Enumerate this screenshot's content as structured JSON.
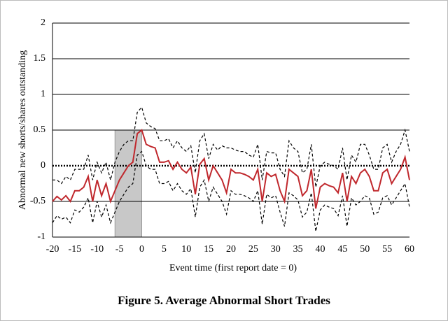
{
  "chart_data": {
    "type": "line",
    "title": "Figure 5. Average Abnormal Short Trades",
    "x_label": "Event time (first report date = 0)",
    "y_label": "Abnormal new shorts/shares outstanding",
    "x": [
      -20,
      -19,
      -18,
      -17,
      -16,
      -15,
      -14,
      -13,
      -12,
      -11,
      -10,
      -9,
      -8,
      -7,
      -6,
      -5,
      -4,
      -3,
      -2,
      -1,
      0,
      1,
      2,
      3,
      4,
      5,
      6,
      7,
      8,
      9,
      10,
      11,
      12,
      13,
      14,
      15,
      16,
      17,
      18,
      19,
      20,
      21,
      22,
      23,
      24,
      25,
      26,
      27,
      28,
      29,
      30,
      31,
      32,
      33,
      34,
      35,
      36,
      37,
      38,
      39,
      40,
      41,
      42,
      43,
      44,
      45,
      46,
      47,
      48,
      49,
      50,
      51,
      52,
      53,
      54,
      55,
      56,
      57,
      58,
      59,
      60
    ],
    "series": [
      {
        "color": "#000000",
        "dashed": true,
        "values": [
          -0.2,
          -0.2,
          -0.25,
          -0.15,
          -0.2,
          -0.05,
          -0.05,
          -0.05,
          0.15,
          -0.2,
          0.05,
          -0.1,
          0.05,
          -0.2,
          0.05,
          0.2,
          0.3,
          0.35,
          0.35,
          0.75,
          0.82,
          0.6,
          0.55,
          0.52,
          0.35,
          0.35,
          0.38,
          0.25,
          0.35,
          0.25,
          0.2,
          0.28,
          -0.1,
          0.35,
          0.45,
          0.1,
          0.3,
          0.22,
          0.28,
          0.25,
          0.25,
          0.22,
          0.2,
          0.2,
          0.15,
          0.12,
          0.3,
          -0.2,
          0.2,
          0.18,
          0.18,
          -0.05,
          -0.15,
          0.35,
          0.25,
          0.2,
          -0.1,
          -0.05,
          0.3,
          -0.3,
          0.0,
          0.05,
          0.02,
          0.0,
          -0.05,
          0.25,
          -0.2,
          0.15,
          0.05,
          0.3,
          0.3,
          0.15,
          -0.05,
          -0.05,
          0.25,
          0.3,
          0.05,
          0.2,
          0.3,
          0.5,
          0.2
        ]
      },
      {
        "color": "#000000",
        "dashed": true,
        "values": [
          -0.8,
          -0.7,
          -0.75,
          -0.72,
          -0.8,
          -0.62,
          -0.65,
          -0.58,
          -0.45,
          -0.8,
          -0.5,
          -0.72,
          -0.55,
          -0.8,
          -0.65,
          -0.5,
          -0.4,
          -0.3,
          -0.25,
          0.15,
          0.2,
          0.0,
          -0.05,
          -0.05,
          -0.25,
          -0.25,
          -0.22,
          -0.35,
          -0.25,
          -0.35,
          -0.4,
          -0.32,
          -0.72,
          -0.3,
          -0.2,
          -0.5,
          -0.3,
          -0.4,
          -0.5,
          -0.68,
          -0.35,
          -0.4,
          -0.4,
          -0.42,
          -0.45,
          -0.5,
          -0.35,
          -0.82,
          -0.4,
          -0.45,
          -0.42,
          -0.65,
          -0.85,
          -0.38,
          -0.42,
          -0.48,
          -0.72,
          -0.65,
          -0.38,
          -0.92,
          -0.62,
          -0.55,
          -0.58,
          -0.6,
          -0.7,
          -0.42,
          -0.85,
          -0.45,
          -0.55,
          -0.5,
          -0.42,
          -0.45,
          -0.68,
          -0.65,
          -0.45,
          -0.42,
          -0.55,
          -0.45,
          -0.35,
          -0.25,
          -0.58
        ]
      },
      {
        "color": "#c0282d",
        "dashed": false,
        "values": [
          -0.5,
          -0.43,
          -0.48,
          -0.42,
          -0.5,
          -0.35,
          -0.35,
          -0.3,
          -0.15,
          -0.5,
          -0.2,
          -0.42,
          -0.25,
          -0.5,
          -0.35,
          -0.2,
          -0.1,
          0.0,
          0.05,
          0.45,
          0.5,
          0.3,
          0.27,
          0.25,
          0.05,
          0.05,
          0.07,
          -0.05,
          0.05,
          -0.05,
          -0.1,
          -0.02,
          -0.4,
          0.02,
          0.1,
          -0.2,
          0.0,
          -0.1,
          -0.2,
          -0.38,
          -0.05,
          -0.1,
          -0.1,
          -0.12,
          -0.15,
          -0.2,
          -0.05,
          -0.5,
          -0.1,
          -0.15,
          -0.12,
          -0.35,
          -0.5,
          -0.05,
          -0.1,
          -0.15,
          -0.42,
          -0.35,
          -0.05,
          -0.6,
          -0.3,
          -0.25,
          -0.28,
          -0.3,
          -0.38,
          -0.1,
          -0.5,
          -0.15,
          -0.25,
          -0.1,
          -0.05,
          -0.15,
          -0.35,
          -0.35,
          -0.1,
          -0.05,
          -0.25,
          -0.15,
          -0.05,
          0.12,
          -0.2
        ]
      }
    ],
    "shaded_region": [
      -6,
      0
    ],
    "xlim": [
      -20,
      60
    ],
    "xticks": [
      -20,
      -15,
      -10,
      -5,
      0,
      5,
      10,
      15,
      20,
      25,
      30,
      35,
      40,
      45,
      50,
      55,
      60
    ],
    "ylim": [
      -1,
      2
    ],
    "yticks": [
      -1,
      -0.5,
      0,
      0.5,
      1,
      1.5,
      2
    ],
    "grid": true
  }
}
